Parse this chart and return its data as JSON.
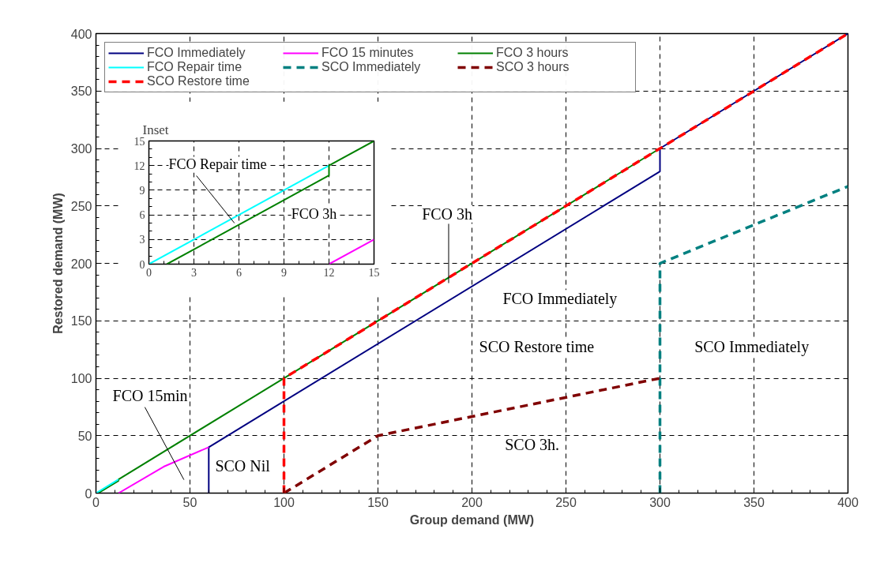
{
  "chart_data": [
    {
      "type": "line",
      "xlabel": "Group demand (MW)",
      "ylabel": "Restored demand (MW)",
      "xlim": [
        0,
        400
      ],
      "ylim": [
        0,
        400
      ],
      "xticks": [
        0,
        50,
        100,
        150,
        200,
        250,
        300,
        350,
        400
      ],
      "yticks": [
        0,
        50,
        100,
        150,
        200,
        250,
        300,
        350,
        400
      ],
      "grid": true,
      "legend": "top left",
      "series": [
        {
          "name": "FCO Immediately",
          "color": "#000080",
          "line_style": "solid",
          "x": [
            60,
            60,
            300,
            300,
            400
          ],
          "values": [
            0,
            40,
            280,
            300,
            400
          ]
        },
        {
          "name": "FCO 15 minutes",
          "color": "#ff00ff",
          "line_style": "solid",
          "x": [
            12,
            36,
            60
          ],
          "values": [
            0,
            23,
            40
          ]
        },
        {
          "name": "FCO 3 hours",
          "color": "#008000",
          "line_style": "solid",
          "x": [
            1.2,
            12,
            12,
            300
          ],
          "values": [
            0,
            10.8,
            12,
            300
          ]
        },
        {
          "name": "FCO Repair time",
          "color": "#00ffff",
          "line_style": "solid",
          "x": [
            0,
            12
          ],
          "values": [
            0,
            12
          ]
        },
        {
          "name": "SCO Immediately",
          "color": "#008080",
          "line_style": "dashed",
          "x": [
            300,
            300,
            400
          ],
          "values": [
            0,
            200,
            267
          ]
        },
        {
          "name": "SCO 3 hours",
          "color": "#800000",
          "line_style": "dashed",
          "x": [
            100,
            150,
            300
          ],
          "values": [
            0,
            50,
            100
          ]
        },
        {
          "name": "SCO Restore time",
          "color": "#ff0000",
          "line_style": "dashed",
          "x": [
            100,
            100,
            400
          ],
          "values": [
            0,
            100,
            400
          ]
        }
      ],
      "annotations": [
        "FCO 3h",
        "FCO Immediately",
        "SCO Restore time",
        "SCO Immediately",
        "FCO 15min",
        "SCO Nil",
        "SCO 3h."
      ]
    },
    {
      "type": "line",
      "title": "Inset",
      "xlim": [
        0,
        15
      ],
      "ylim": [
        0,
        15
      ],
      "xticks": [
        0,
        3,
        6,
        9,
        12,
        15
      ],
      "yticks": [
        0,
        3,
        6,
        9,
        12,
        15
      ],
      "grid": true,
      "series": [
        {
          "color": "#00ffff",
          "line_style": "solid",
          "x": [
            0,
            12
          ],
          "values": [
            0,
            12
          ]
        },
        {
          "color": "#008000",
          "line_style": "solid",
          "x": [
            1.2,
            12,
            12,
            15
          ],
          "values": [
            0,
            10.8,
            12,
            15
          ]
        },
        {
          "color": "#ff00ff",
          "line_style": "solid",
          "x": [
            12,
            15
          ],
          "values": [
            0,
            3
          ]
        }
      ],
      "annotations": [
        {
          "text": "FCO Repair time",
          "x": 5.7,
          "y": 5.0
        },
        "FCO 3h"
      ]
    }
  ]
}
